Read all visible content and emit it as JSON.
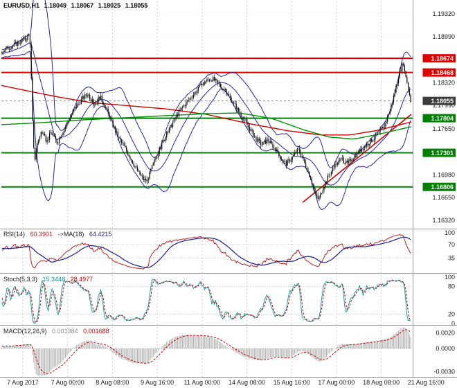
{
  "header": {
    "symbol": "EURUSD,H1",
    "open": "1.18049",
    "high": "1.18067",
    "low": "1.18025",
    "close": "1.18055"
  },
  "panels": {
    "rsi": {
      "name": "RSI(14)",
      "value": "60.3901",
      "ma_label": "->MA(18)",
      "ma_value": "64.4215"
    },
    "stoch": {
      "name": "Stoch(5,3,3)",
      "main": "15.3448",
      "signal": "28.4977"
    },
    "macd": {
      "name": "MACD(12,26,9)",
      "main": "0.001384",
      "signal": "0.001688"
    }
  },
  "chart_data": {
    "type": "candlestick",
    "symbol": "EURUSD",
    "timeframe": "H1",
    "title": "EURUSD,H1 1.18049 1.18067 1.18025 1.18055",
    "bars": 336,
    "y_ticks": [
      "1.19320",
      "1.18990",
      "1.18660",
      "1.18320",
      "1.17990",
      "1.17650",
      "1.17320",
      "1.16980",
      "1.16650",
      "1.16320"
    ],
    "x_labels": [
      "7 Aug 2017",
      "7 Aug 00:00",
      "8 Aug 08:00",
      "9 Aug 16:00",
      "11 Aug 00:00",
      "14 Aug 08:00",
      "15 Aug 16:00",
      "17 Aug 00:00",
      "18 Aug 08:00",
      "21 Aug 16:00"
    ],
    "price_range": {
      "max": 1.1932,
      "min": 1.1632
    },
    "levels": {
      "resistance": [
        {
          "price": 1.18674,
          "label": "1.18674"
        },
        {
          "price": 1.18468,
          "label": "1.18468"
        }
      ],
      "support": [
        {
          "price": 1.17804,
          "label": "1.17804"
        },
        {
          "price": 1.17301,
          "label": "1.17301"
        },
        {
          "price": 1.16806,
          "label": "1.16806"
        }
      ],
      "current": {
        "price": 1.18055,
        "label": "1.18055"
      }
    },
    "close_path": [
      [
        0.0,
        1.1878
      ],
      [
        0.02,
        1.1884
      ],
      [
        0.04,
        1.189
      ],
      [
        0.06,
        1.1897
      ],
      [
        0.068,
        1.1902
      ],
      [
        0.072,
        1.183
      ],
      [
        0.076,
        1.1745
      ],
      [
        0.08,
        1.172
      ],
      [
        0.086,
        1.1742
      ],
      [
        0.095,
        1.176
      ],
      [
        0.11,
        1.1747
      ],
      [
        0.12,
        1.176
      ],
      [
        0.135,
        1.1745
      ],
      [
        0.15,
        1.1763
      ],
      [
        0.165,
        1.178
      ],
      [
        0.18,
        1.1796
      ],
      [
        0.195,
        1.1808
      ],
      [
        0.21,
        1.1816
      ],
      [
        0.225,
        1.18
      ],
      [
        0.24,
        1.1812
      ],
      [
        0.255,
        1.1794
      ],
      [
        0.27,
        1.1772
      ],
      [
        0.285,
        1.1752
      ],
      [
        0.3,
        1.1738
      ],
      [
        0.315,
        1.1722
      ],
      [
        0.33,
        1.1705
      ],
      [
        0.345,
        1.1692
      ],
      [
        0.355,
        1.1689
      ],
      [
        0.365,
        1.1706
      ],
      [
        0.38,
        1.1728
      ],
      [
        0.395,
        1.1748
      ],
      [
        0.41,
        1.1765
      ],
      [
        0.425,
        1.1782
      ],
      [
        0.44,
        1.1795
      ],
      [
        0.455,
        1.1806
      ],
      [
        0.47,
        1.1816
      ],
      [
        0.485,
        1.1826
      ],
      [
        0.5,
        1.1835
      ],
      [
        0.515,
        1.1838
      ],
      [
        0.53,
        1.183
      ],
      [
        0.545,
        1.182
      ],
      [
        0.56,
        1.1808
      ],
      [
        0.575,
        1.1794
      ],
      [
        0.59,
        1.178
      ],
      [
        0.605,
        1.1766
      ],
      [
        0.62,
        1.1752
      ],
      [
        0.635,
        1.1742
      ],
      [
        0.65,
        1.1749
      ],
      [
        0.665,
        1.1738
      ],
      [
        0.68,
        1.1724
      ],
      [
        0.695,
        1.1714
      ],
      [
        0.71,
        1.1723
      ],
      [
        0.725,
        1.1736
      ],
      [
        0.74,
        1.1716
      ],
      [
        0.755,
        1.1694
      ],
      [
        0.765,
        1.1672
      ],
      [
        0.775,
        1.1662
      ],
      [
        0.785,
        1.1679
      ],
      [
        0.8,
        1.1698
      ],
      [
        0.815,
        1.1711
      ],
      [
        0.83,
        1.1721
      ],
      [
        0.845,
        1.1714
      ],
      [
        0.86,
        1.1724
      ],
      [
        0.875,
        1.1733
      ],
      [
        0.89,
        1.1741
      ],
      [
        0.905,
        1.1749
      ],
      [
        0.92,
        1.1757
      ],
      [
        0.935,
        1.1769
      ],
      [
        0.95,
        1.1793
      ],
      [
        0.962,
        1.1821
      ],
      [
        0.972,
        1.1846
      ],
      [
        0.98,
        1.1858
      ],
      [
        0.988,
        1.1842
      ],
      [
        1.0,
        1.1806
      ]
    ],
    "ma_red_path": [
      [
        0.0,
        1.1828
      ],
      [
        0.08,
        1.1818
      ],
      [
        0.15,
        1.181
      ],
      [
        0.22,
        1.1803
      ],
      [
        0.3,
        1.1799
      ],
      [
        0.4,
        1.1794
      ],
      [
        0.5,
        1.1786
      ],
      [
        0.6,
        1.1773
      ],
      [
        0.7,
        1.1762
      ],
      [
        0.78,
        1.1756
      ],
      [
        0.85,
        1.1756
      ],
      [
        0.92,
        1.1763
      ],
      [
        1.0,
        1.1775
      ]
    ],
    "ma_green_path": [
      [
        0.0,
        1.1771
      ],
      [
        0.1,
        1.1774
      ],
      [
        0.2,
        1.1778
      ],
      [
        0.3,
        1.1781
      ],
      [
        0.4,
        1.1784
      ],
      [
        0.5,
        1.1787
      ],
      [
        0.58,
        1.1788
      ],
      [
        0.66,
        1.178
      ],
      [
        0.74,
        1.1763
      ],
      [
        0.8,
        1.1753
      ],
      [
        0.86,
        1.175
      ],
      [
        0.92,
        1.1757
      ],
      [
        1.0,
        1.1768
      ]
    ],
    "trendline": {
      "from": [
        0.735,
        1.1658
      ],
      "to": [
        1.0,
        1.1786
      ]
    },
    "rsi": {
      "period": 14,
      "ma_period": 18,
      "last": 60.3901,
      "ma_last": 64.4215,
      "ticks": [
        "100",
        "70",
        "35"
      ],
      "levels": [
        70,
        35
      ]
    },
    "stoch": {
      "k": 5,
      "d": 3,
      "slowing": 3,
      "last": 15.3448,
      "signal_last": 28.4977,
      "ticks": [
        "100",
        "80",
        "20",
        "0"
      ],
      "levels": [
        80,
        20
      ]
    },
    "macd": {
      "fast": 12,
      "slow": 26,
      "signal": 9,
      "last": 0.001384,
      "signal_last": 0.001688,
      "ticks": [
        {
          "label": "0.0020",
          "value": 0.002
        },
        {
          "label": "0.0000",
          "value": 0
        },
        {
          "label": "-0.0030",
          "value": -0.003
        }
      ]
    },
    "colors": {
      "resistance": "#dd0000",
      "support": "#008000",
      "current_tag": "#3c3c3c",
      "bollinger": "#24249b",
      "ma_red": "#cc0000",
      "ma_green": "#009000",
      "trendline": "#cc0000",
      "candle": "#111111",
      "rsi_main": "#b22222",
      "rsi_ma": "#1a1a8c",
      "stoch_main": "#0fa3a3",
      "stoch_signal": "#cc0000",
      "macd_hist": "#b3b3b3",
      "macd_signal": "#cc0000",
      "grid": "#cfcfcf",
      "separator": "#9a9a9a"
    }
  }
}
